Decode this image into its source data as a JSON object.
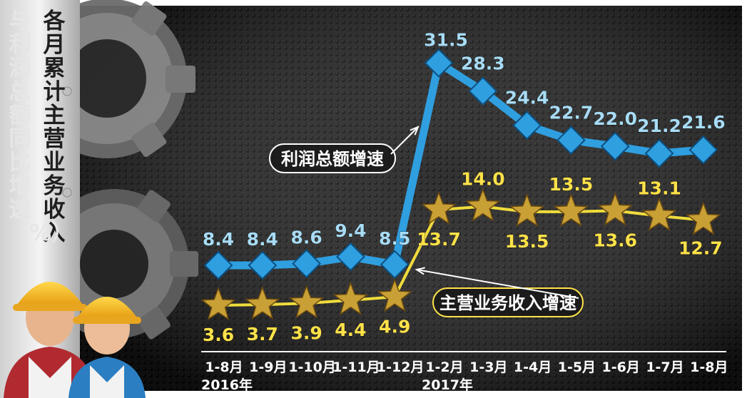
{
  "chart_data": {
    "type": "line",
    "title": "各月累计主营业务收入",
    "subtitle": "与利润总额同比增速（%）",
    "categories": [
      "1-8月",
      "1-9月",
      "1-10月",
      "1-11月",
      "1-12月",
      "1-2月",
      "1-3月",
      "1-4月",
      "1-5月",
      "1-6月",
      "1-7月",
      "1-8月"
    ],
    "year_labels": [
      {
        "label": "2016年",
        "category_index": 0
      },
      {
        "label": "2017年",
        "category_index": 5
      }
    ],
    "series": [
      {
        "name": "利润总额增速",
        "color": "#2f9fe0",
        "marker": "diamond",
        "values": [
          8.4,
          8.4,
          8.6,
          9.4,
          8.5,
          31.5,
          28.3,
          24.4,
          22.7,
          22.0,
          21.2,
          21.6
        ],
        "value_labels": [
          "8.4",
          "8.4",
          "8.6",
          "9.4",
          "8.5",
          "31.5",
          "28.3",
          "24.4",
          "22.7",
          "22.0",
          "21.2",
          "21.6"
        ]
      },
      {
        "name": "主营业务收入增速",
        "color": "#f0dc3c",
        "marker": "star",
        "values": [
          3.6,
          3.7,
          3.9,
          4.4,
          4.9,
          13.7,
          14.0,
          13.5,
          13.5,
          13.6,
          13.1,
          12.7
        ],
        "value_labels": [
          "3.6",
          "3.7",
          "3.9",
          "4.4",
          "4.9",
          "13.7",
          "14.0",
          "13.5",
          "13.5",
          "13.6",
          "13.1",
          "12.7"
        ]
      }
    ],
    "annotations": [
      "利润总额增速",
      "主营业务收入增速"
    ],
    "grid": false,
    "legend": "inline callouts with arrows"
  },
  "colors": {
    "background": "#161616",
    "profit_line": "#2f9fe0",
    "profit_label": "#a8dcf5",
    "revenue_line": "#f0dc3c",
    "revenue_marker": "#c9a035",
    "revenue_label": "#ffe24a"
  }
}
